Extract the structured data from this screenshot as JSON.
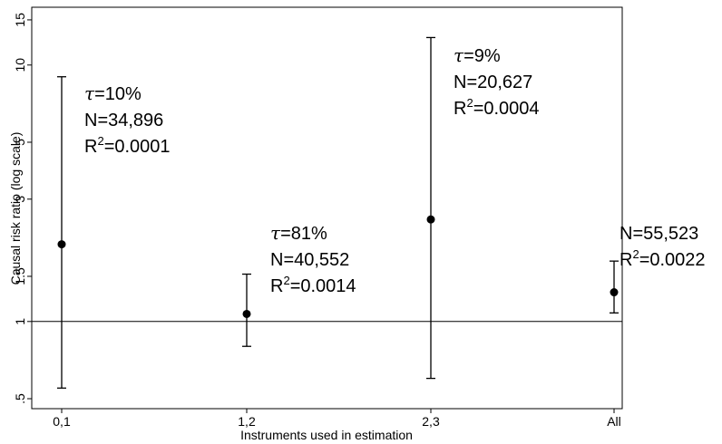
{
  "chart_data": {
    "type": "scatter",
    "title": "",
    "xlabel": "Instruments used in estimation",
    "ylabel": "Causal risk ratio (log scale)",
    "yscale": "log",
    "ylim": [
      0.5,
      16
    ],
    "yticks": [
      0.5,
      1,
      1.5,
      3,
      5,
      10,
      15
    ],
    "ytick_labels": [
      ".5",
      "1",
      "1.5",
      "3",
      "5",
      "10",
      "15"
    ],
    "categories": [
      "0,1",
      "1,2",
      "2,3",
      "All"
    ],
    "reference_line": 1,
    "grid": false,
    "points": [
      {
        "x": "0,1",
        "estimate": 2.0,
        "lower": 0.55,
        "upper": 9.0,
        "annotations": [
          {
            "prefix": "τ=",
            "text": "10%"
          },
          {
            "prefix": "",
            "text": "N=34,896"
          },
          {
            "prefix": "",
            "text": "R²=0.0001"
          }
        ]
      },
      {
        "x": "1,2",
        "estimate": 1.07,
        "lower": 0.8,
        "upper": 1.53,
        "annotations": [
          {
            "prefix": "τ=",
            "text": "81%"
          },
          {
            "prefix": "",
            "text": "N=40,552"
          },
          {
            "prefix": "",
            "text": "R²=0.0014"
          }
        ]
      },
      {
        "x": "2,3",
        "estimate": 2.5,
        "lower": 0.6,
        "upper": 12.8,
        "annotations": [
          {
            "prefix": "τ=",
            "text": "9%"
          },
          {
            "prefix": "",
            "text": "N=20,627"
          },
          {
            "prefix": "",
            "text": "R²=0.0004"
          }
        ]
      },
      {
        "x": "All",
        "estimate": 1.3,
        "lower": 1.08,
        "upper": 1.72,
        "annotations": [
          {
            "prefix": "",
            "text": "N=55,523"
          },
          {
            "prefix": "",
            "text": "R²=0.0022"
          }
        ]
      }
    ]
  }
}
